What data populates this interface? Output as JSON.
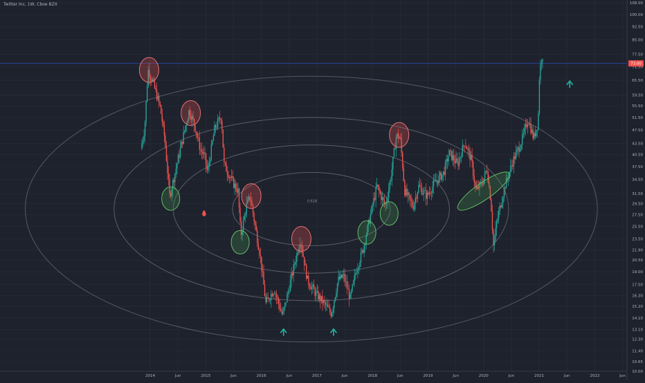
{
  "chart_title": "Twitter Inc, 1W, Cboe BZX",
  "price_badge": "73.00",
  "ellipse_label": "0.618",
  "chart_data": {
    "type": "candlestick",
    "title": "Twitter Inc, 1W, Cboe BZX",
    "yscale": "log",
    "ylim": [
      10.0,
      108.0
    ],
    "y_ticks": [
      "108.00",
      "100.00",
      "92.50",
      "85.00",
      "77.50",
      "71.50",
      "65.50",
      "59.50",
      "55.50",
      "51.50",
      "47.50",
      "43.50",
      "40.50",
      "37.50",
      "34.50",
      "31.50",
      "29.50",
      "27.50",
      "25.50",
      "23.50",
      "21.90",
      "20.50",
      "19.00",
      "17.50",
      "16.30",
      "15.20",
      "14.10",
      "13.10",
      "12.30",
      "11.40",
      "10.65",
      "10.00"
    ],
    "x_ticks": [
      {
        "label": "2014",
        "t": 0
      },
      {
        "label": "Jun",
        "t": 0.5
      },
      {
        "label": "2015",
        "t": 1
      },
      {
        "label": "Jun",
        "t": 1.5
      },
      {
        "label": "2016",
        "t": 2
      },
      {
        "label": "Jun",
        "t": 2.5
      },
      {
        "label": "2017",
        "t": 3
      },
      {
        "label": "Jun",
        "t": 3.5
      },
      {
        "label": "2018",
        "t": 4
      },
      {
        "label": "Jun",
        "t": 4.5
      },
      {
        "label": "2019",
        "t": 5
      },
      {
        "label": "Jun",
        "t": 5.5
      },
      {
        "label": "2020",
        "t": 6
      },
      {
        "label": "Jun",
        "t": 6.5
      },
      {
        "label": "2021",
        "t": 7
      },
      {
        "label": "Jun",
        "t": 7.5
      },
      {
        "label": "2022",
        "t": 8
      },
      {
        "label": "Jun",
        "t": 8.5
      }
    ],
    "price_path": [
      {
        "t": -0.15,
        "p": 42
      },
      {
        "t": -0.08,
        "p": 48
      },
      {
        "t": -0.02,
        "p": 70
      },
      {
        "t": 0.05,
        "p": 66
      },
      {
        "t": 0.2,
        "p": 55
      },
      {
        "t": 0.28,
        "p": 45
      },
      {
        "t": 0.37,
        "p": 31
      },
      {
        "t": 0.5,
        "p": 38
      },
      {
        "t": 0.62,
        "p": 46
      },
      {
        "t": 0.72,
        "p": 54
      },
      {
        "t": 0.82,
        "p": 49
      },
      {
        "t": 0.92,
        "p": 42
      },
      {
        "t": 1.0,
        "p": 40
      },
      {
        "t": 1.05,
        "p": 36
      },
      {
        "t": 1.18,
        "p": 48
      },
      {
        "t": 1.3,
        "p": 52
      },
      {
        "t": 1.35,
        "p": 38
      },
      {
        "t": 1.5,
        "p": 34
      },
      {
        "t": 1.6,
        "p": 32
      },
      {
        "t": 1.65,
        "p": 24
      },
      {
        "t": 1.75,
        "p": 29
      },
      {
        "t": 1.82,
        "p": 31
      },
      {
        "t": 1.9,
        "p": 26
      },
      {
        "t": 2.0,
        "p": 21
      },
      {
        "t": 2.1,
        "p": 15.5
      },
      {
        "t": 2.25,
        "p": 17
      },
      {
        "t": 2.4,
        "p": 14.3
      },
      {
        "t": 2.55,
        "p": 18
      },
      {
        "t": 2.72,
        "p": 23.5
      },
      {
        "t": 2.85,
        "p": 18
      },
      {
        "t": 3.0,
        "p": 16.5
      },
      {
        "t": 3.15,
        "p": 15.5
      },
      {
        "t": 3.28,
        "p": 14.5
      },
      {
        "t": 3.4,
        "p": 18
      },
      {
        "t": 3.5,
        "p": 18.5
      },
      {
        "t": 3.62,
        "p": 16
      },
      {
        "t": 3.72,
        "p": 19
      },
      {
        "t": 3.85,
        "p": 22
      },
      {
        "t": 3.95,
        "p": 26
      },
      {
        "t": 4.1,
        "p": 33
      },
      {
        "t": 4.25,
        "p": 29
      },
      {
        "t": 4.35,
        "p": 35
      },
      {
        "t": 4.45,
        "p": 46
      },
      {
        "t": 4.52,
        "p": 45
      },
      {
        "t": 4.6,
        "p": 32
      },
      {
        "t": 4.75,
        "p": 29
      },
      {
        "t": 4.85,
        "p": 33
      },
      {
        "t": 5.0,
        "p": 31
      },
      {
        "t": 5.15,
        "p": 34
      },
      {
        "t": 5.3,
        "p": 36
      },
      {
        "t": 5.4,
        "p": 41
      },
      {
        "t": 5.55,
        "p": 38
      },
      {
        "t": 5.68,
        "p": 44
      },
      {
        "t": 5.8,
        "p": 39
      },
      {
        "t": 5.88,
        "p": 32
      },
      {
        "t": 6.0,
        "p": 34
      },
      {
        "t": 6.08,
        "p": 37
      },
      {
        "t": 6.15,
        "p": 30
      },
      {
        "t": 6.2,
        "p": 22
      },
      {
        "t": 6.25,
        "p": 26
      },
      {
        "t": 6.4,
        "p": 33
      },
      {
        "t": 6.55,
        "p": 39
      },
      {
        "t": 6.7,
        "p": 44
      },
      {
        "t": 6.82,
        "p": 51
      },
      {
        "t": 6.92,
        "p": 45
      },
      {
        "t": 7.0,
        "p": 50
      },
      {
        "t": 7.02,
        "p": 66
      },
      {
        "t": 7.05,
        "p": 74
      },
      {
        "t": 7.07,
        "p": 77
      }
    ],
    "circles": [
      {
        "t": -0.02,
        "p": 70,
        "color": "red"
      },
      {
        "t": 0.73,
        "p": 53,
        "color": "red"
      },
      {
        "t": 1.82,
        "p": 31,
        "color": "red"
      },
      {
        "t": 2.72,
        "p": 23.5,
        "color": "red"
      },
      {
        "t": 4.48,
        "p": 46,
        "color": "red"
      },
      {
        "t": 0.37,
        "p": 30.5,
        "color": "green"
      },
      {
        "t": 1.62,
        "p": 23,
        "color": "green"
      },
      {
        "t": 3.9,
        "p": 24.5,
        "color": "green"
      },
      {
        "t": 4.3,
        "p": 27.7,
        "color": "green"
      },
      {
        "t": 6.0,
        "p": 32,
        "color": "green",
        "tilt": -55
      }
    ],
    "arrows": [
      {
        "t": 2.4,
        "p": 12.9
      },
      {
        "t": 3.3,
        "p": 12.9
      },
      {
        "t": 7.55,
        "p": 64
      }
    ],
    "drop_marker": {
      "t": 0.97,
      "p": 27.7
    },
    "ellipses": [
      {
        "center_t": 2.9,
        "center_p": 28.5,
        "rx_t": 3.55,
        "scale": 1.0
      },
      {
        "center_t": 2.9,
        "center_p": 28.5,
        "rx_t": 3.55,
        "scale": 0.7
      },
      {
        "center_t": 2.9,
        "center_p": 28.5,
        "rx_t": 3.55,
        "scale": 0.4
      }
    ],
    "ellipse_shape": {
      "ry_over_rx": 0.465
    },
    "current_price": 73.0,
    "grid": true
  }
}
